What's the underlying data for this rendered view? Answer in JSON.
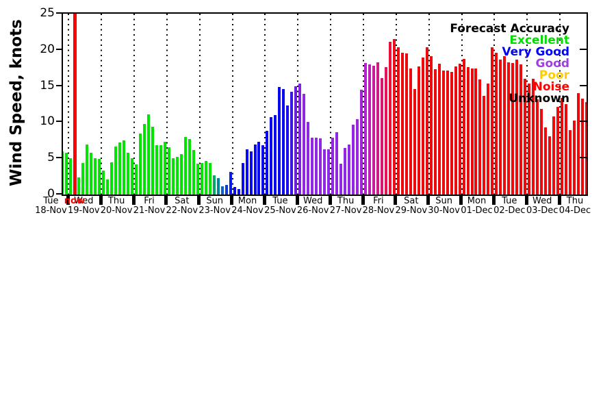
{
  "axis": {
    "ylabel": "Wind Speed, knots",
    "yticks": [
      0,
      5,
      10,
      15,
      20,
      25
    ],
    "yticks_right": [
      5,
      10,
      15,
      20
    ],
    "ylim": [
      0,
      25
    ]
  },
  "legend": {
    "title": "Forecast Accuracy",
    "title_color": "#000000",
    "items": [
      {
        "label": "Excellent",
        "color": "#00dd00"
      },
      {
        "label": "Very Good",
        "color": "#0000ff"
      },
      {
        "label": "Good",
        "color": "#a040e0"
      },
      {
        "label": "Poor",
        "color": "#ffcc00"
      },
      {
        "label": "Noise",
        "color": "#ff0000"
      },
      {
        "label": "Unknown",
        "color": "#000000"
      }
    ]
  },
  "now_marker": {
    "label": "now",
    "color": "#ff0000",
    "day_index": 1,
    "slot": 1
  },
  "chart_data": {
    "type": "bar",
    "title": "",
    "ylabel": "Wind Speed, knots",
    "ylim": [
      0,
      25
    ],
    "x_unit": "3-hour interval bars, dotted lines at midnight",
    "days": [
      {
        "day": "Tue",
        "date": "18-Nov",
        "start_slot": 6,
        "color": "#00e400",
        "values": [
          6.0,
          5.8
        ]
      },
      {
        "day": "Wed",
        "date": "19-Nov",
        "start_slot": 0,
        "color": "#00e400",
        "values": [
          5.0,
          0,
          2.4,
          4.4,
          6.9,
          5.8,
          5.0,
          4.9
        ]
      },
      {
        "day": "Thu",
        "date": "20-Nov",
        "start_slot": 0,
        "color": "#00e400",
        "values": [
          3.3,
          2.1,
          4.5,
          6.6,
          7.2,
          7.5,
          5.8,
          5.0
        ]
      },
      {
        "day": "Fri",
        "date": "21-Nov",
        "start_slot": 0,
        "color": "#00e400",
        "values": [
          4.2,
          8.4,
          9.8,
          11.1,
          9.4,
          6.8,
          6.8,
          7.3
        ]
      },
      {
        "day": "Sat",
        "date": "22-Nov",
        "start_slot": 0,
        "color": "#00e400",
        "values": [
          6.5,
          5.0,
          5.2,
          5.6,
          8.0,
          7.7,
          6.2,
          4.3
        ]
      },
      {
        "day": "Sun",
        "date": "23-Nov",
        "start_slot": 0,
        "values": [
          4.4,
          4.6,
          4.4,
          2.7,
          2.3,
          1.1,
          1.3,
          3.1
        ],
        "colors": [
          "#00e400",
          "#00e400",
          "#00e400",
          "#00aa66",
          "#00879c",
          "#0b5ecc",
          "#0a3ae0",
          "#0a1aec"
        ]
      },
      {
        "day": "Mon",
        "date": "24-Nov",
        "start_slot": 0,
        "color": "#0a0af0",
        "values": [
          1.0,
          0.8,
          4.4,
          6.3,
          6.0,
          6.9,
          7.3,
          6.8
        ]
      },
      {
        "day": "Tue",
        "date": "25-Nov",
        "start_slot": 0,
        "values": [
          8.8,
          10.7,
          11.0,
          14.9,
          14.6,
          12.3,
          14.2,
          15.0
        ],
        "colors": [
          "#0a0af0",
          "#0a0af0",
          "#0a0af0",
          "#0a0af0",
          "#0a0af0",
          "#1c0cee",
          "#3b14e8",
          "#6b1ede"
        ]
      },
      {
        "day": "Wed",
        "date": "26-Nov",
        "start_slot": 0,
        "values": [
          15.3,
          13.9,
          10.0,
          7.9,
          7.9,
          7.8,
          6.3,
          6.3
        ],
        "colors": [
          "#8122e0",
          "#9127e3",
          "#9127e3",
          "#9127e3",
          "#9127e3",
          "#9127e3",
          "#9127e3",
          "#9127e3"
        ]
      },
      {
        "day": "Thu",
        "date": "27-Nov",
        "start_slot": 0,
        "values": [
          7.9,
          8.6,
          4.3,
          6.4,
          6.9,
          9.7,
          10.4,
          14.5
        ],
        "colors": [
          "#9127e3",
          "#9127e3",
          "#9127e3",
          "#9127e3",
          "#9127e3",
          "#9127e3",
          "#9c26dd",
          "#a324d8"
        ]
      },
      {
        "day": "Fri",
        "date": "28-Nov",
        "start_slot": 0,
        "values": [
          18.2,
          18.0,
          17.8,
          18.3,
          16.1,
          17.6,
          21.1,
          21.5
        ],
        "colors": [
          "#b322cc",
          "#bd1fb5",
          "#c81c9e",
          "#d21987",
          "#dc1670",
          "#e61356",
          "#ee0f38",
          "#f30b1c"
        ]
      },
      {
        "day": "Sat",
        "date": "29-Nov",
        "start_slot": 0,
        "color": "#ee0a0a",
        "values": [
          20.4,
          19.6,
          19.5,
          17.4,
          14.6,
          17.7,
          18.9,
          20.4
        ]
      },
      {
        "day": "Sun",
        "date": "30-Nov",
        "start_slot": 0,
        "color": "#ee0a0a",
        "values": [
          19.1,
          17.3,
          18.1,
          17.1,
          17.1,
          17.0,
          17.7,
          18.1
        ]
      },
      {
        "day": "Mon",
        "date": "01-Dec",
        "start_slot": 0,
        "color": "#ee0a0a",
        "values": [
          18.8,
          17.6,
          17.4,
          17.4,
          15.9,
          13.6,
          15.3,
          20.4
        ]
      },
      {
        "day": "Tue",
        "date": "02-Dec",
        "start_slot": 0,
        "color": "#ee0a0a",
        "values": [
          19.6,
          18.7,
          19.1,
          18.3,
          18.2,
          18.7,
          18.0,
          16.0
        ]
      },
      {
        "day": "Wed",
        "date": "03-Dec",
        "start_slot": 0,
        "color": "#ee0a0a",
        "values": [
          15.3,
          16.0,
          13.2,
          11.8,
          9.3,
          8.1,
          10.8,
          12.1
        ]
      },
      {
        "day": "Thu",
        "date": "04-Dec",
        "start_slot": 0,
        "color": "#ee0a0a",
        "values": [
          13.4,
          12.5,
          8.9,
          10.2,
          14.0,
          13.3,
          12.8
        ]
      }
    ]
  }
}
